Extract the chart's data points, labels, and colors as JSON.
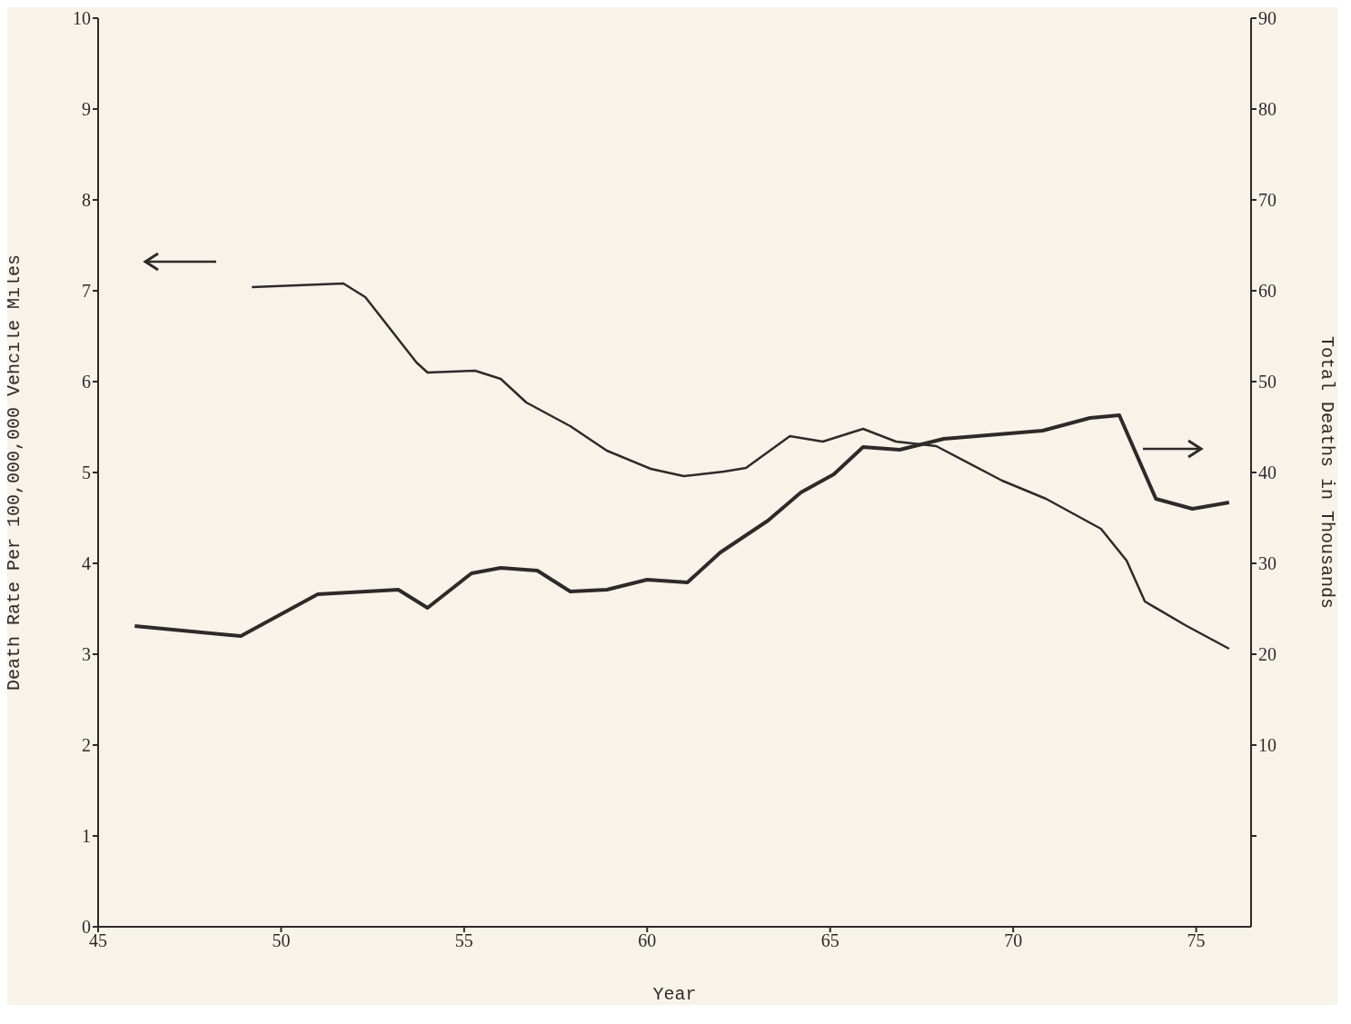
{
  "chart_data": {
    "type": "line",
    "xlabel": "Year",
    "ylabel": "Death Rate Per 100,000,000 Vehcile Miles",
    "y2label": "Total Deaths in Thousands",
    "xlim": [
      45,
      76.5
    ],
    "xticks": [
      45,
      50,
      55,
      60,
      65,
      70,
      75
    ],
    "ylim": [
      0,
      10
    ],
    "yticks": [
      0,
      1,
      2,
      3,
      4,
      5,
      6,
      7,
      8,
      9,
      10
    ],
    "y2lim": [
      -10,
      90
    ],
    "y2ticks": [
      {
        "value": 0,
        "label": null
      },
      10,
      20,
      30,
      40,
      50,
      60,
      70,
      80,
      90
    ],
    "marker": "none",
    "line_style": "solid",
    "series": [
      {
        "color": "#2e2a2b",
        "x": [
          49.2,
          51.7,
          52.3,
          53.7,
          54.0,
          55.3,
          56.0,
          56.7,
          57.9,
          58.9,
          60.1,
          61.0,
          62.1,
          62.7,
          63.9,
          64.8,
          65.9,
          66.8,
          67.9,
          69.7,
          70.9,
          72.4,
          73.1,
          73.6,
          74.7,
          75.9
        ],
        "values": [
          7.04,
          7.08,
          6.93,
          6.21,
          6.1,
          6.12,
          6.03,
          5.77,
          5.51,
          5.24,
          5.04,
          4.96,
          5.01,
          5.05,
          5.4,
          5.34,
          5.48,
          5.34,
          5.29,
          4.91,
          4.71,
          4.38,
          4.03,
          3.58,
          3.32,
          3.06
        ]
      },
      {
        "color": "#2e2a2b",
        "axis": "y2",
        "x": [
          46.0,
          48.9,
          51.0,
          53.2,
          54.0,
          55.2,
          56.0,
          57.0,
          57.9,
          58.9,
          60.0,
          61.1,
          62.0,
          63.3,
          64.2,
          65.1,
          65.9,
          66.9,
          68.1,
          70.8,
          72.1,
          72.9,
          73.9,
          74.9,
          75.9
        ],
        "values": [
          23.1,
          22.0,
          26.6,
          27.1,
          25.1,
          28.9,
          29.5,
          29.2,
          26.9,
          27.1,
          28.2,
          27.9,
          31.2,
          34.7,
          37.8,
          39.8,
          42.8,
          42.5,
          43.7,
          44.6,
          46.0,
          46.3,
          37.1,
          36.0,
          36.7
        ]
      }
    ]
  }
}
